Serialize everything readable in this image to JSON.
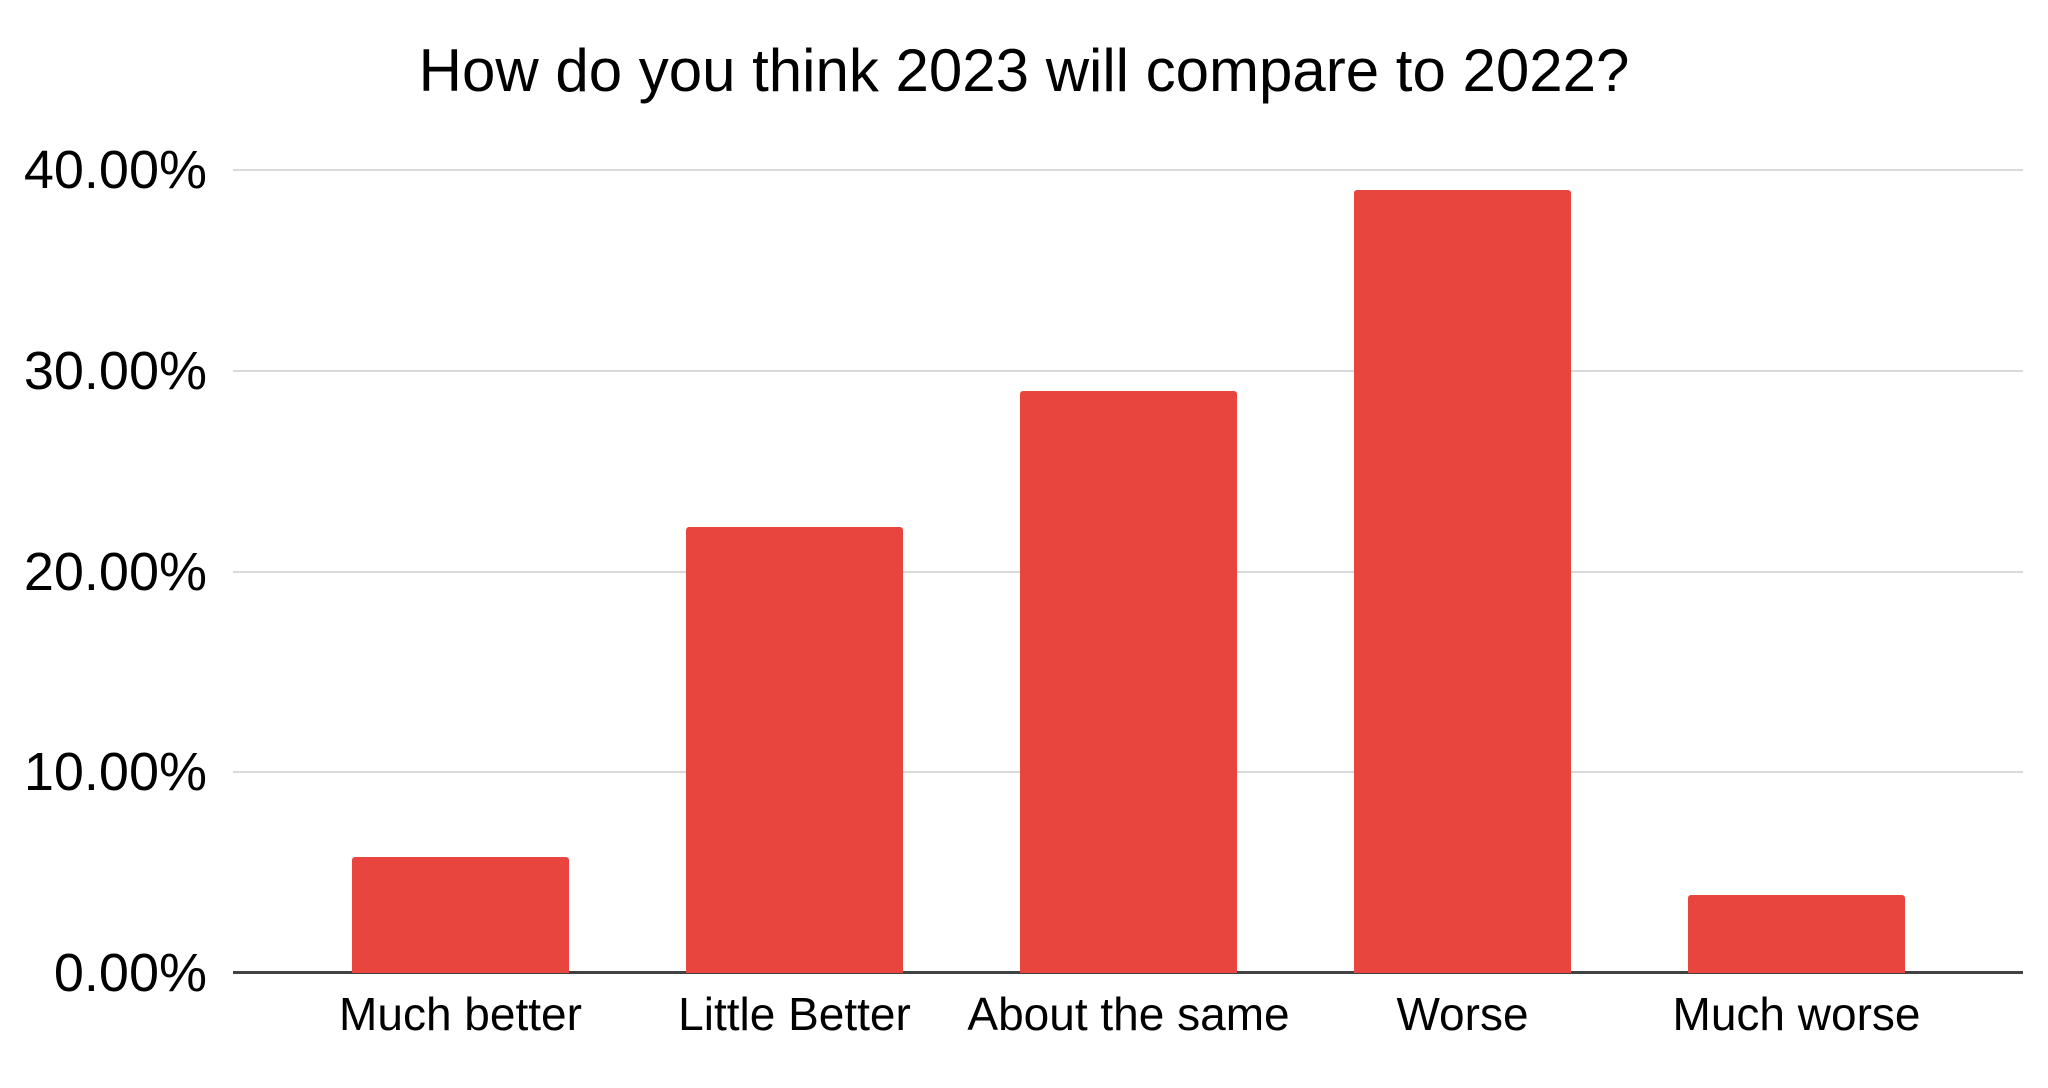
{
  "chart_data": {
    "type": "bar",
    "title": "How do you think 2023 will compare to 2022?",
    "categories": [
      "Much better",
      "Little Better",
      "About the same",
      "Worse",
      "Much worse"
    ],
    "values": [
      5.8,
      22.2,
      29.0,
      39.0,
      3.9
    ],
    "value_unit": "percent",
    "series_name": "",
    "xlabel": "",
    "ylabel": "",
    "ylim": [
      0,
      40
    ],
    "yticks": [
      {
        "label": "0.00%",
        "value": 0
      },
      {
        "label": "10.00%",
        "value": 10
      },
      {
        "label": "20.00%",
        "value": 20
      },
      {
        "label": "30.00%",
        "value": 30
      },
      {
        "label": "40.00%",
        "value": 40
      }
    ],
    "grid": "horizontal",
    "legend": "none",
    "data_labels": "none",
    "colors": {
      "bar": "#E8453E",
      "gridline": "#D9D9D9",
      "axis_line": "#424242",
      "text": "#000000",
      "background": "#FFFFFF"
    }
  }
}
